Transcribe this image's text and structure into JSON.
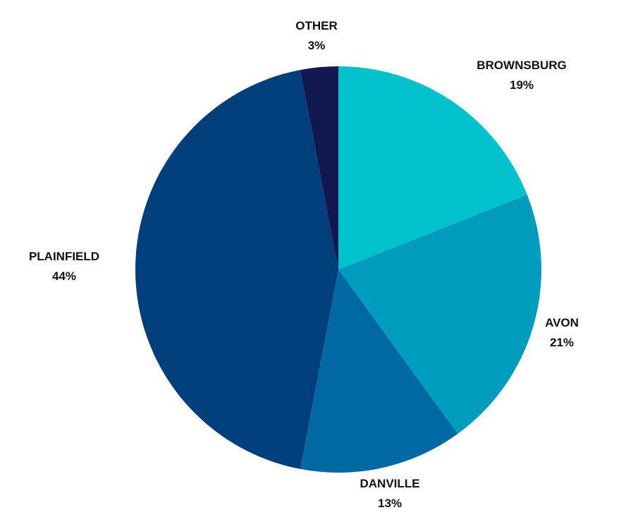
{
  "chart_data": {
    "type": "pie",
    "title": "",
    "start_angle_deg": 0,
    "direction": "clockwise",
    "legend": "none",
    "slices": [
      {
        "label": "BROWNSBURG",
        "value": 19,
        "value_label": "19%",
        "color": "#00C2CC"
      },
      {
        "label": "AVON",
        "value": 21,
        "value_label": "21%",
        "color": "#009CBD"
      },
      {
        "label": "DANVILLE",
        "value": 13,
        "value_label": "13%",
        "color": "#0069A3"
      },
      {
        "label": "PLAINFIELD",
        "value": 44,
        "value_label": "44%",
        "color": "#003E7C"
      },
      {
        "label": "OTHER",
        "value": 3,
        "value_label": "3%",
        "color": "#12184F"
      }
    ]
  }
}
